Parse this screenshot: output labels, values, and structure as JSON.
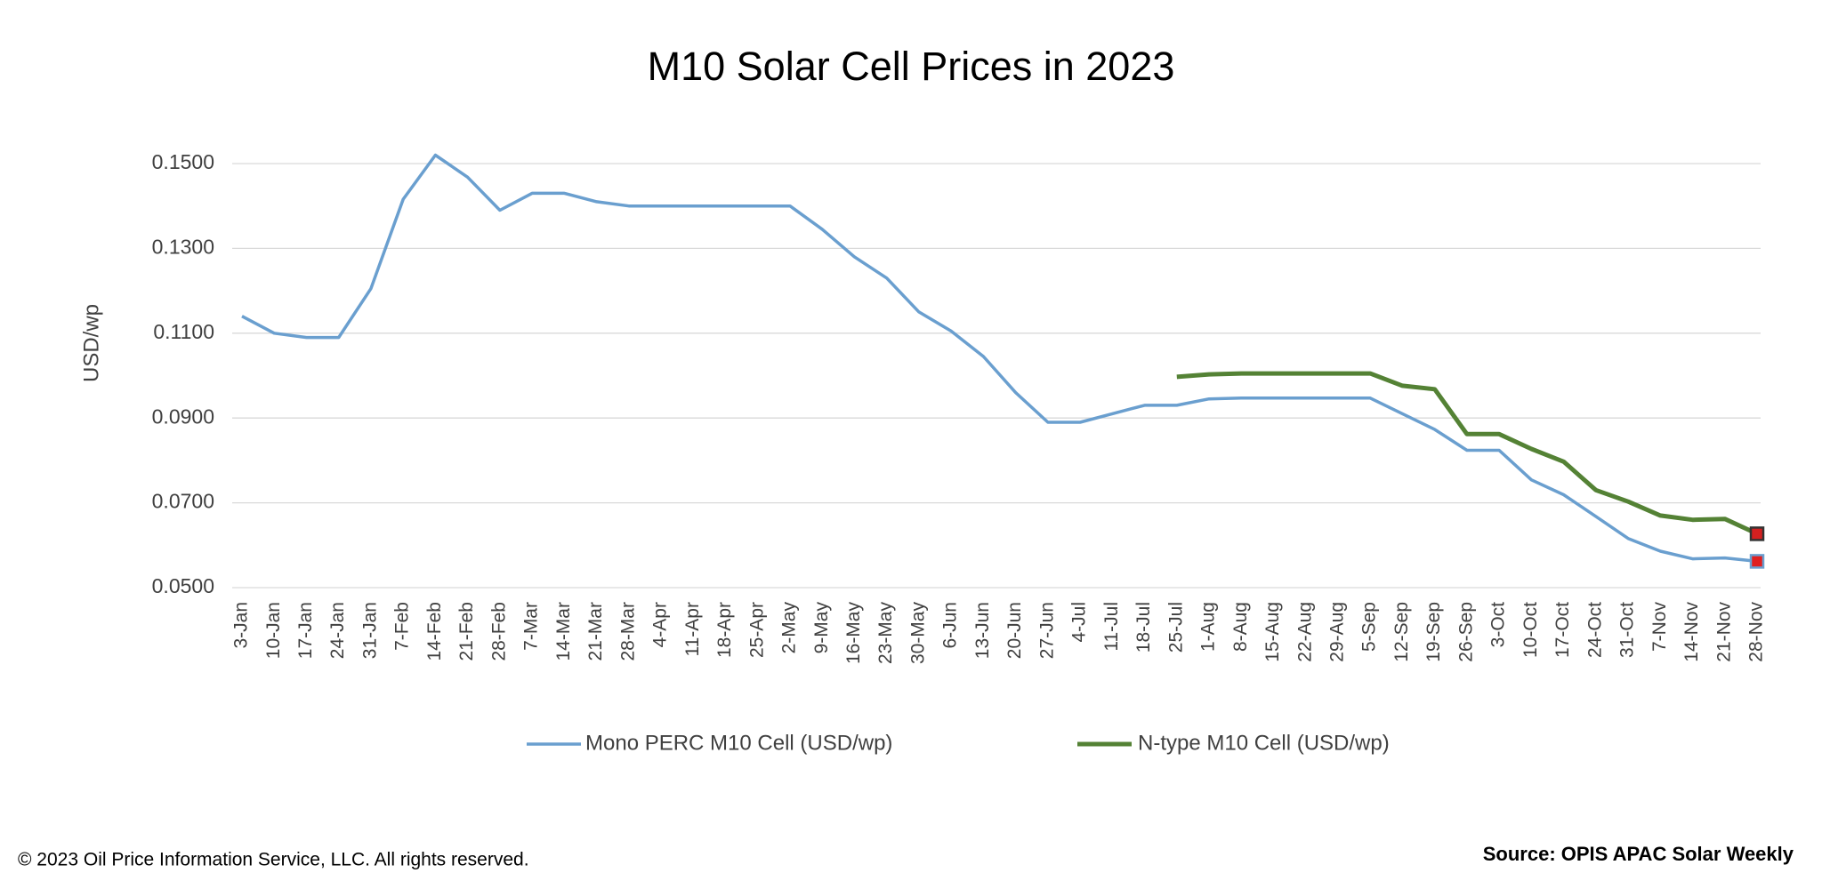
{
  "chart_data": {
    "type": "line",
    "title": "M10 Solar Cell Prices in 2023",
    "y_label": "USD/wp",
    "categories": [
      "3-Jan",
      "10-Jan",
      "17-Jan",
      "24-Jan",
      "31-Jan",
      "7-Feb",
      "14-Feb",
      "21-Feb",
      "28-Feb",
      "7-Mar",
      "14-Mar",
      "21-Mar",
      "28-Mar",
      "4-Apr",
      "11-Apr",
      "18-Apr",
      "25-Apr",
      "2-May",
      "9-May",
      "16-May",
      "23-May",
      "30-May",
      "6-Jun",
      "13-Jun",
      "20-Jun",
      "27-Jun",
      "4-Jul",
      "11-Jul",
      "18-Jul",
      "25-Jul",
      "1-Aug",
      "8-Aug",
      "15-Aug",
      "22-Aug",
      "29-Aug",
      "5-Sep",
      "12-Sep",
      "19-Sep",
      "26-Sep",
      "3-Oct",
      "10-Oct",
      "17-Oct",
      "24-Oct",
      "31-Oct",
      "7-Nov",
      "14-Nov",
      "21-Nov",
      "28-Nov"
    ],
    "series": [
      {
        "name": "Mono PERC M10 Cell (USD/wp)",
        "color": "#6a9fcf",
        "marker_fill": "#e02020",
        "values": [
          0.114,
          0.11,
          0.109,
          0.109,
          0.1205,
          0.1416,
          0.152,
          0.1468,
          0.139,
          0.143,
          0.143,
          0.141,
          0.14,
          0.14,
          0.14,
          0.14,
          0.14,
          0.14,
          0.1345,
          0.128,
          0.123,
          0.115,
          0.1105,
          0.1045,
          0.096,
          0.089,
          0.089,
          0.091,
          0.093,
          0.093,
          0.0945,
          0.0947,
          0.0947,
          0.0947,
          0.0947,
          0.0947,
          0.091,
          0.0873,
          0.0824,
          0.0824,
          0.0754,
          0.0719,
          0.0668,
          0.0616,
          0.0586,
          0.0568,
          0.057,
          0.0562
        ]
      },
      {
        "name": "N-type M10 Cell (USD/wp)",
        "color": "#548235",
        "marker_fill": "#d42020",
        "values": [
          null,
          null,
          null,
          null,
          null,
          null,
          null,
          null,
          null,
          null,
          null,
          null,
          null,
          null,
          null,
          null,
          null,
          null,
          null,
          null,
          null,
          null,
          null,
          null,
          null,
          null,
          null,
          null,
          null,
          0.0997,
          0.1003,
          0.1005,
          0.1005,
          0.1005,
          0.1005,
          0.1005,
          0.0976,
          0.0968,
          0.0862,
          0.0862,
          0.0827,
          0.0797,
          0.073,
          0.0703,
          0.067,
          0.066,
          0.0662,
          0.0627
        ]
      }
    ],
    "ylim": [
      0.05,
      0.152
    ],
    "yticks": [
      {
        "value": 0.05,
        "label": "0.0500"
      },
      {
        "value": 0.07,
        "label": "0.0700"
      },
      {
        "value": 0.09,
        "label": "0.0900"
      },
      {
        "value": 0.11,
        "label": "0.1100"
      },
      {
        "value": 0.13,
        "label": "0.1300"
      },
      {
        "value": 0.15,
        "label": "0.1500"
      }
    ],
    "grid": true,
    "legend": "bottom",
    "copyright": "© 2023 Oil Price Information Service, LLC. All rights reserved.",
    "source": "Source: OPIS APAC Solar Weekly"
  }
}
